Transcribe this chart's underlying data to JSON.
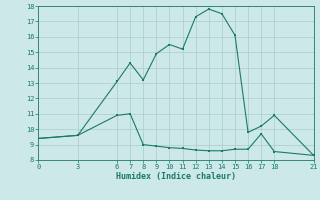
{
  "xlabel": "Humidex (Indice chaleur)",
  "bg_color": "#cce8e8",
  "line_color": "#1a7a6a",
  "grid_color": "#aacccc",
  "xlim": [
    0,
    21
  ],
  "ylim": [
    8,
    18
  ],
  "xticks": [
    0,
    3,
    6,
    7,
    8,
    9,
    10,
    11,
    12,
    13,
    14,
    15,
    16,
    17,
    18,
    21
  ],
  "yticks": [
    8,
    9,
    10,
    11,
    12,
    13,
    14,
    15,
    16,
    17,
    18
  ],
  "line1_x": [
    0,
    3,
    6,
    7,
    8,
    9,
    10,
    11,
    12,
    13,
    14,
    15,
    16,
    17,
    18,
    21
  ],
  "line1_y": [
    9.4,
    9.6,
    13.1,
    14.3,
    13.2,
    14.9,
    15.5,
    15.2,
    17.3,
    17.8,
    17.5,
    16.1,
    9.8,
    10.2,
    10.9,
    8.3
  ],
  "line2_x": [
    0,
    3,
    6,
    7,
    8,
    9,
    10,
    11,
    12,
    13,
    14,
    15,
    16,
    17,
    18,
    21
  ],
  "line2_y": [
    9.4,
    9.6,
    10.9,
    11.0,
    9.0,
    8.9,
    8.8,
    8.75,
    8.65,
    8.6,
    8.6,
    8.7,
    8.7,
    9.7,
    8.55,
    8.3
  ]
}
